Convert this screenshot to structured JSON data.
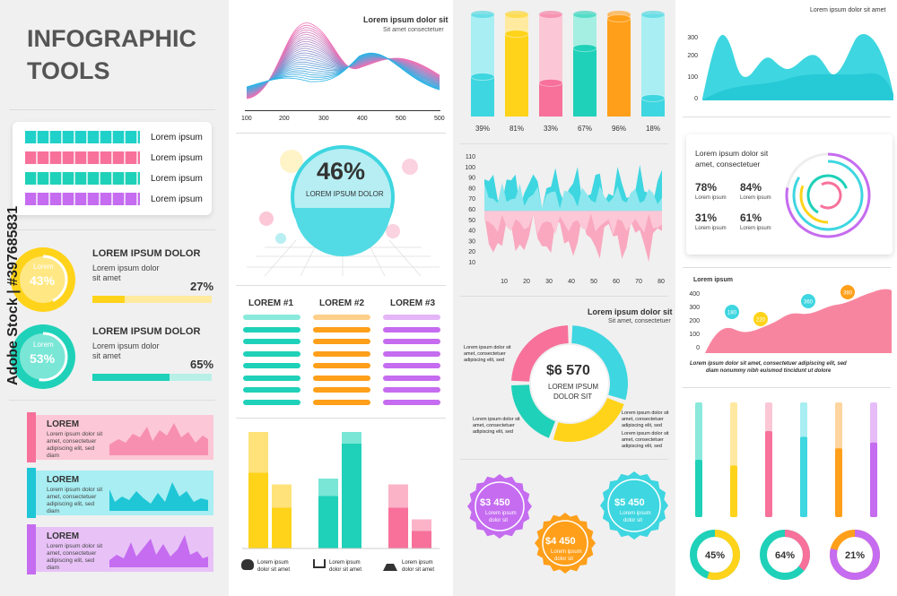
{
  "palette": {
    "teal": "#1fd1b8",
    "pink": "#f7719b",
    "purple": "#c56cf0",
    "yellow": "#ffd31a",
    "orange": "#ff9f1a",
    "cyan": "#3ed6e0",
    "panel": "#f0f0f0"
  },
  "header": {
    "title_line1": "INFOGRAPHIC",
    "title_line2": "TOOLS"
  },
  "legend": {
    "items": [
      {
        "label": "Lorem ipsum",
        "color": "#1fd1c8"
      },
      {
        "label": "Lorem ipsum",
        "color": "#f7719b"
      },
      {
        "label": "Lorem ipsum",
        "color": "#1fd1b8"
      },
      {
        "label": "Lorem ipsum",
        "color": "#c56cf0"
      }
    ]
  },
  "progress": [
    {
      "circle_label": "Lorem",
      "percent_text": "43%",
      "value": 43,
      "title": "LOREM IPSUM DOLOR",
      "desc1": "Lorem ipsum dolor",
      "desc2": "sit amet",
      "bar_text": "27%",
      "bar_value": 27,
      "color": "#ffd31a"
    },
    {
      "circle_label": "Lorem",
      "percent_text": "53%",
      "value": 53,
      "title": "LOREM IPSUM DOLOR",
      "desc1": "Lorem ipsum dolor",
      "desc2": "sit amet",
      "bar_text": "65%",
      "bar_value": 65,
      "color": "#1fd1b8"
    }
  ],
  "ribbons": [
    {
      "title": "LOREM",
      "l1": "Lorem ipsum dolor sit",
      "l2": "amet, consectetuer",
      "l3": "adipiscing elit, sed",
      "l4": "diam",
      "color": "#f78fb0",
      "bg": "#fcc7d6"
    },
    {
      "title": "LOREM",
      "l1": "Lorem ipsum dolor sit",
      "l2": "amet, consectetuer",
      "l3": "adipiscing elit, sed",
      "l4": "diam",
      "color": "#3ed6e0",
      "bg": "#a8eef2"
    },
    {
      "title": "LOREM",
      "l1": "Lorem ipsum dolor sit",
      "l2": "amet, consectetuer",
      "l3": "adipiscing elit, sed",
      "l4": "diam",
      "color": "#c56cf0",
      "bg": "#e8c2f7"
    }
  ],
  "wave": {
    "title": "Lorem ipsum dolor sit",
    "subtitle": "Sit amet consectetuer",
    "ticks": [
      "100",
      "200",
      "300",
      "400",
      "500"
    ]
  },
  "sphere": {
    "value_text": "46%",
    "label": "LOREM IPSUM DOLOR"
  },
  "lists": {
    "headers": [
      "LOREM #1",
      "LOREM #2",
      "LOREM #3"
    ]
  },
  "chart_data": [
    {
      "type": "bar",
      "title": "cylinder-bars",
      "categories": [
        "A",
        "B",
        "C",
        "D",
        "E",
        "F"
      ],
      "values": [
        39,
        81,
        33,
        67,
        96,
        18
      ],
      "labels": [
        "39%",
        "81%",
        "33%",
        "67%",
        "96%",
        "18%"
      ],
      "ylim": [
        0,
        100
      ]
    },
    {
      "type": "area",
      "y_ticks": [
        "110",
        "100",
        "90",
        "80",
        "70",
        "60",
        "50",
        "40",
        "30",
        "20",
        "10"
      ],
      "x_ticks": [
        "10",
        "20",
        "30",
        "40",
        "50",
        "60",
        "70",
        "80"
      ],
      "ylim": [
        10,
        110
      ],
      "xlim": [
        5,
        85
      ]
    },
    {
      "type": "pie",
      "center_value": "$6 570",
      "center_label1": "LOREM IPSUM",
      "center_label2": "DOLOR SIT",
      "title": "Lorem ipsum dolor sit",
      "subtitle": "Sit amet, consectetuer",
      "values": [
        30,
        25,
        20,
        25
      ]
    },
    {
      "type": "bar",
      "title": "stacked",
      "groups": [
        {
          "values": [
            [
              65,
              100
            ],
            [
              35,
              55
            ]
          ]
        },
        {
          "values": [
            [
              45,
              60
            ],
            [
              90,
              100
            ]
          ]
        },
        {
          "values": [
            [
              35,
              55
            ],
            [
              15,
              25
            ]
          ]
        }
      ]
    },
    {
      "type": "area",
      "title": "Lorem ipsum dolor sit amet",
      "y_ticks": [
        "300",
        "200",
        "100",
        "0"
      ]
    },
    {
      "type": "area",
      "title": "Lorem ipsum",
      "y_ticks": [
        "400",
        "300",
        "200",
        "100",
        "0"
      ],
      "pins": [
        "180",
        "220",
        "360",
        "380"
      ]
    },
    {
      "type": "bar",
      "title": "vertical-bars",
      "values": [
        [
          50,
          100
        ],
        [
          45,
          100
        ],
        [
          75,
          100
        ],
        [
          70,
          100
        ],
        [
          60,
          100
        ],
        [
          65,
          100
        ]
      ]
    },
    {
      "type": "pie",
      "title": "donuts",
      "values": [
        45,
        64,
        21
      ],
      "labels": [
        "45%",
        "64%",
        "21%"
      ]
    }
  ],
  "badges": [
    {
      "value": "$3 450",
      "l1": "Lorem ipsum",
      "l2": "dolor sit",
      "color": "#c56cf0"
    },
    {
      "value": "$4 450",
      "l1": "Lorem ipsum",
      "l2": "dolor sit",
      "color": "#ff9f1a"
    },
    {
      "value": "$5 450",
      "l1": "Lorem ipsum",
      "l2": "dolor sit",
      "color": "#3ed6e0"
    }
  ],
  "donut_notes": [
    {
      "l1": "Lorem ipsum dolor sit",
      "l2": "amet, consectetuer",
      "l3": "adipiscing elit, sed"
    },
    {
      "l1": "Lorem ipsum dolor sit",
      "l2": "amet, consectetuer",
      "l3": "adipiscing elit, sed"
    },
    {
      "l1": "Lorem ipsum dolor sit",
      "l2": "amet, consectetuer",
      "l3": "adipiscing elit, sed"
    },
    {
      "l1": "Lorem ipsum dolor sit",
      "l2": "amet, consectetuer",
      "l3": "adipiscing elit, sed"
    }
  ],
  "stats": {
    "title1": "Lorem ipsum dolor sit",
    "title2": "amet, consectetuer",
    "items": [
      {
        "value": "78%",
        "label": "Lorem ipsum"
      },
      {
        "value": "84%",
        "label": "Lorem ipsum"
      },
      {
        "value": "31%",
        "label": "Lorem ipsum"
      },
      {
        "value": "61%",
        "label": "Lorem ipsum"
      }
    ]
  },
  "pink_chart_caption": {
    "l1": "Lorem ipsum dolor sit amet, consectetuer adipiscing elit, sed",
    "l2": "diam nonummy nibh euismod tincidunt ut dolore"
  },
  "bar_captions": [
    {
      "l1": "Lorem ipsum",
      "l2": "dolor sit amet"
    },
    {
      "l1": "Lorem ipsum",
      "l2": "dolor sit amet"
    },
    {
      "l1": "Lorem ipsum",
      "l2": "dolor sit amet"
    }
  ],
  "watermark": "Adobe Stock | #397685831"
}
